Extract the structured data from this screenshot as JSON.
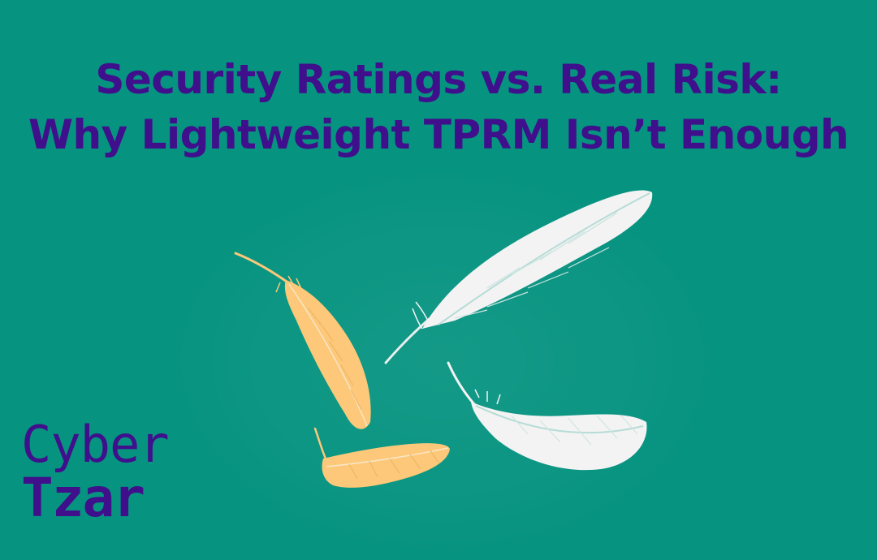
{
  "headline": {
    "line1": "Security Ratings vs. Real Risk:",
    "line2": "Why Lightweight TPRM Isn’t Enough"
  },
  "logo": {
    "line1": "Cyber",
    "line2": "Tzar"
  },
  "colors": {
    "background": "#069380",
    "text": "#3f0f8c",
    "feather_orange": "#fdc879",
    "feather_white": "#f3f3f3",
    "feather_line_teal": "#b6dcd6"
  },
  "illustration": {
    "feathers": [
      "orange-feather",
      "orange-feather",
      "white-feather",
      "white-feather"
    ]
  }
}
